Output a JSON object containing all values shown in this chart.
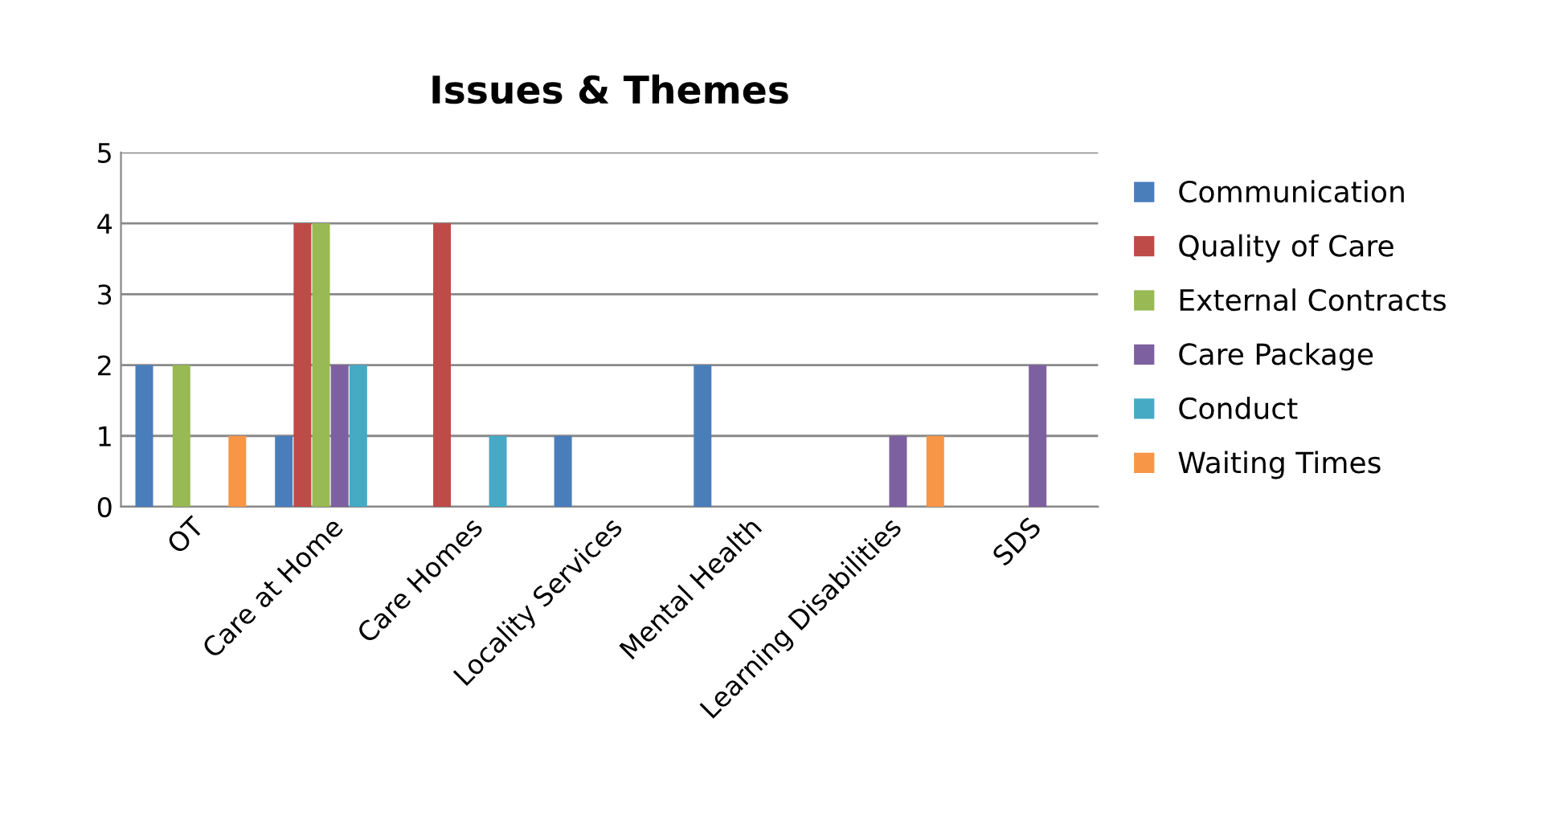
{
  "chart_data": {
    "type": "bar",
    "title": "Issues & Themes",
    "categories": [
      "OT",
      "Care at Home",
      "Care Homes",
      "Locality Services",
      "Mental Health",
      "Learning Disabilities",
      "SDS"
    ],
    "series": [
      {
        "name": "Communication",
        "color": "#4a7ebb",
        "values": [
          2,
          1,
          0,
          1,
          2,
          0,
          0
        ]
      },
      {
        "name": "Quality of Care",
        "color": "#be4b48",
        "values": [
          0,
          4,
          4,
          0,
          0,
          0,
          0
        ]
      },
      {
        "name": "External Contracts",
        "color": "#98b954",
        "values": [
          2,
          4,
          0,
          0,
          0,
          0,
          0
        ]
      },
      {
        "name": "Care Package",
        "color": "#7d60a0",
        "values": [
          0,
          2,
          0,
          0,
          0,
          1,
          2
        ]
      },
      {
        "name": "Conduct",
        "color": "#46aac5",
        "values": [
          0,
          2,
          1,
          0,
          0,
          0,
          0
        ]
      },
      {
        "name": "Waiting Times",
        "color": "#f79646",
        "values": [
          1,
          0,
          0,
          0,
          0,
          1,
          0
        ]
      }
    ],
    "ylim": [
      0,
      5
    ],
    "yticks": [
      0,
      1,
      2,
      3,
      4,
      5
    ],
    "grid": "y",
    "legend": "right"
  }
}
